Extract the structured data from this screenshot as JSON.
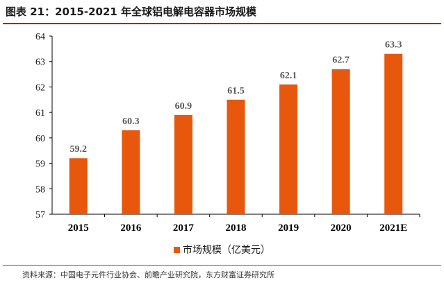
{
  "title": "图表 21：2015-2021 年全球铝电解电容器市场规模",
  "source": "资料来源：中国电子元件行业协会、前瞻产业研究院，东方财富证券研究所",
  "colors": {
    "bar": "#e8580c",
    "accent_rule": "#c00000"
  },
  "chart_data": {
    "type": "bar",
    "categories": [
      "2015",
      "2016",
      "2017",
      "2018",
      "2019",
      "2020",
      "2021E"
    ],
    "series": [
      {
        "name": "市场规模（亿美元）",
        "values": [
          59.2,
          60.3,
          60.9,
          61.5,
          62.1,
          62.7,
          63.3
        ]
      }
    ],
    "data_labels": [
      "59.2",
      "60.3",
      "60.9",
      "61.5",
      "62.1",
      "62.7",
      "63.3"
    ],
    "yticks": [
      "57",
      "58",
      "59",
      "60",
      "61",
      "62",
      "63",
      "64"
    ],
    "ylim": [
      57,
      64
    ],
    "grid": false,
    "legend_position": "bottom"
  }
}
